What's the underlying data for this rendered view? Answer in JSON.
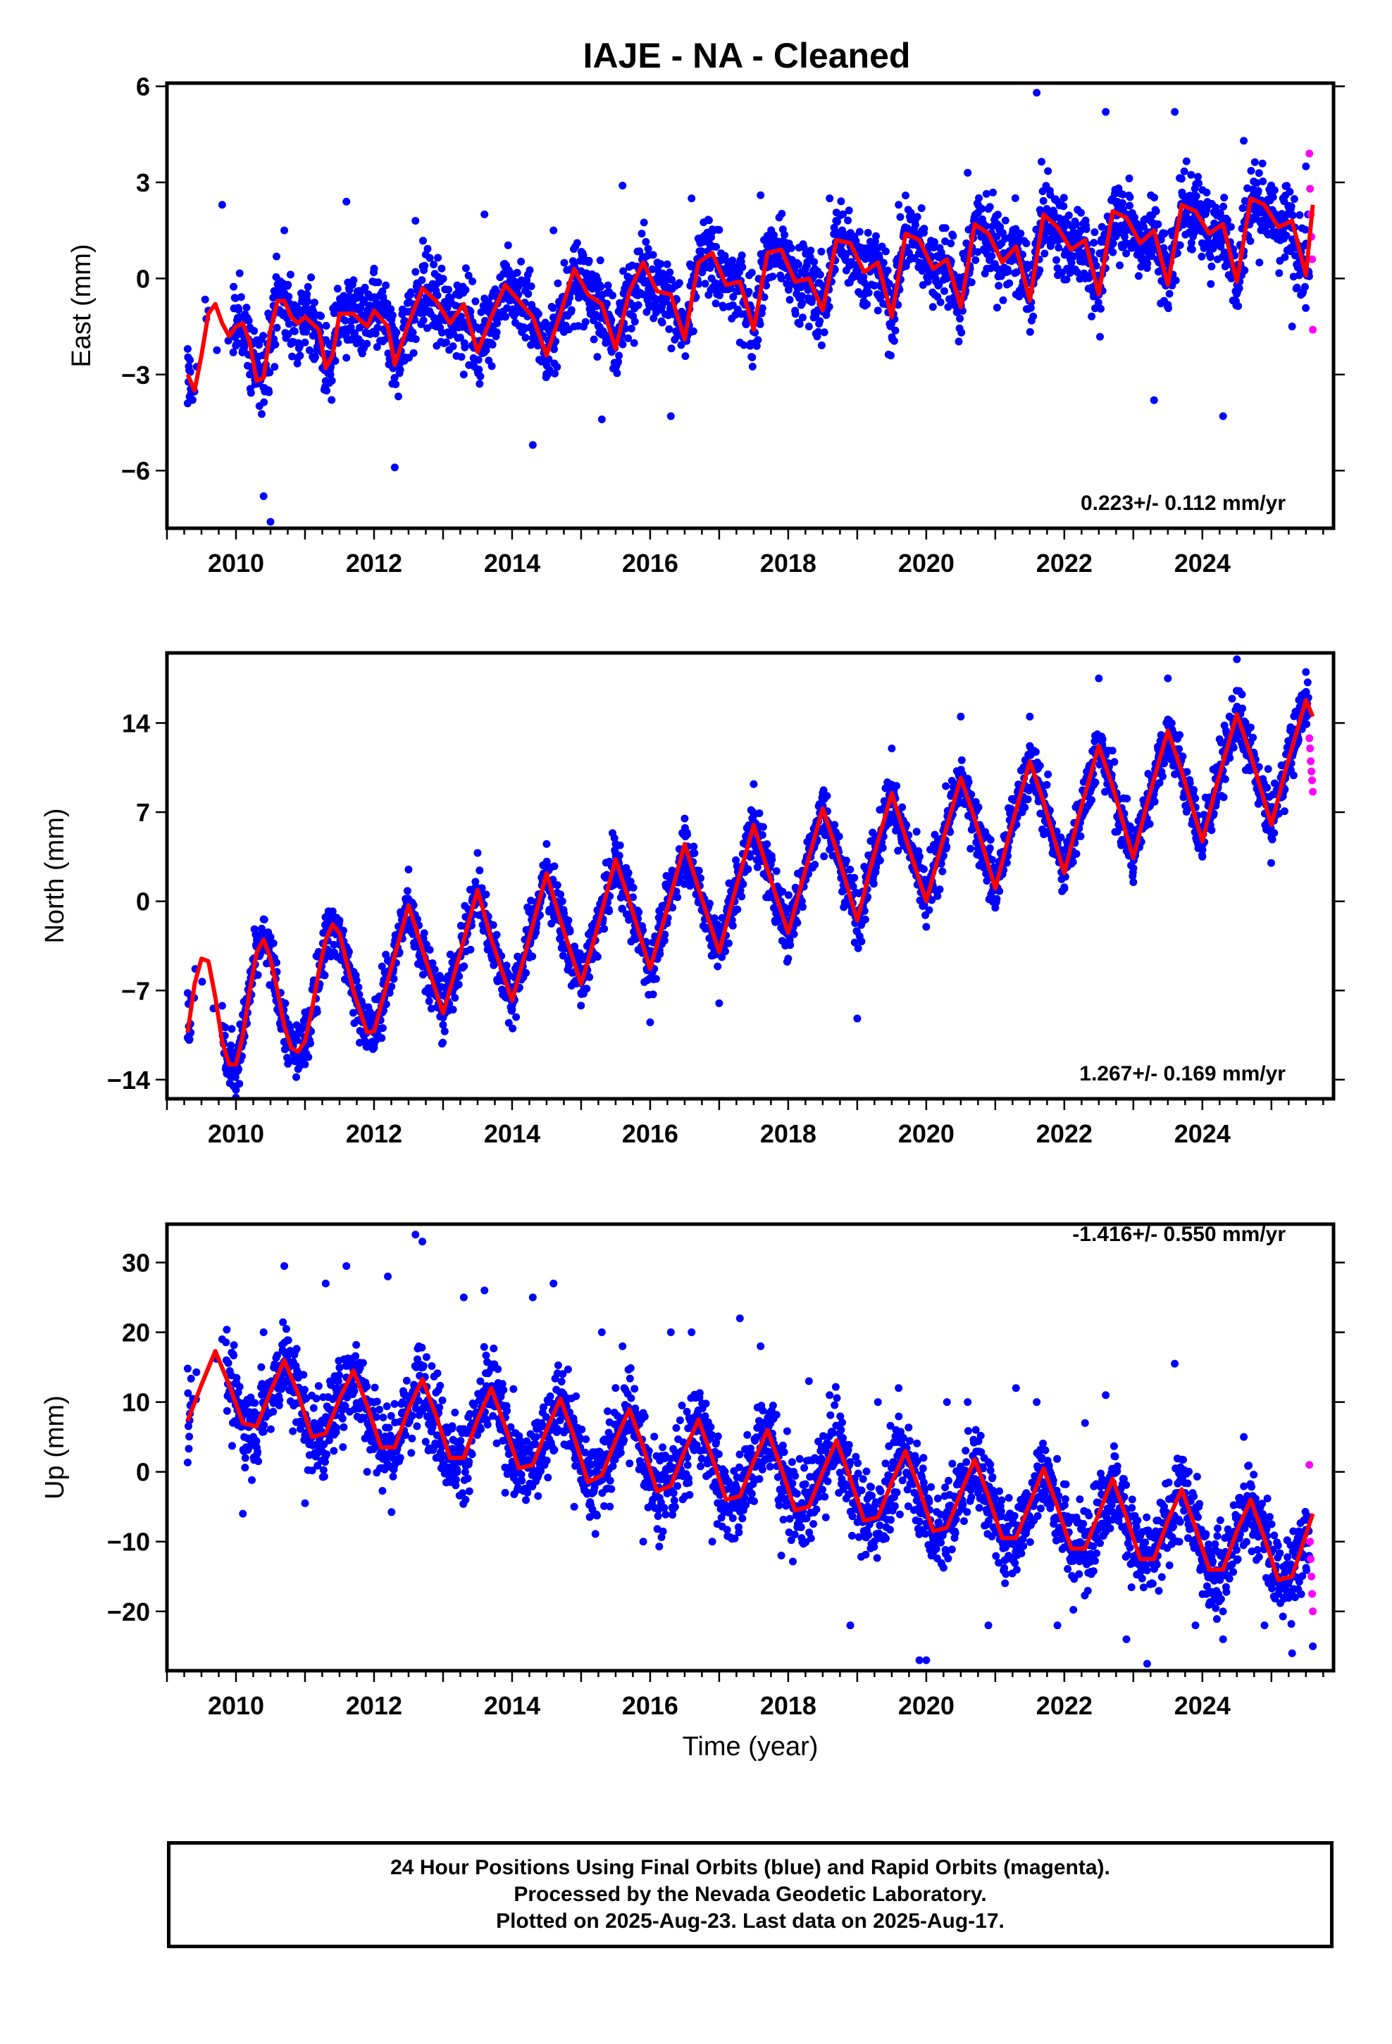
{
  "title": "IAJE  - NA - Cleaned",
  "footer": {
    "line1": "24 Hour Positions Using Final Orbits (blue) and Rapid Orbits (magenta).",
    "line2": "Processed by the Nevada Geodetic Laboratory.",
    "line3": "Plotted on 2025-Aug-23. Last data on 2025-Aug-17."
  },
  "chart_data": [
    {
      "type": "scatter",
      "ylabel": "East (mm)",
      "xlabel": "",
      "rate_label": "0.223+/- 0.112 mm/yr",
      "xlim": [
        2009.0,
        2025.9
      ],
      "ylim": [
        -7.8,
        6.1
      ],
      "xticks": [
        2010,
        2012,
        2014,
        2016,
        2018,
        2020,
        2022,
        2024
      ],
      "yticks": [
        -6,
        -3,
        0,
        3,
        6
      ],
      "yticklabels": [
        "−6",
        "−3",
        "0",
        "3",
        "6"
      ],
      "grid": false,
      "colors": {
        "final": "#0000ff",
        "rapid": "#ff00ff",
        "model": "#ff0000"
      },
      "series": [
        {
          "name": "Final Orbits",
          "kind": "points",
          "x": [
            2009.3,
            2009.6,
            2009.8,
            2010.0,
            2010.2,
            2010.4,
            2010.5,
            2010.7,
            2011.0,
            2011.3,
            2011.6,
            2011.9,
            2012.3,
            2012.6,
            2012.9,
            2013.3,
            2013.6,
            2013.9,
            2014.3,
            2014.6,
            2014.9,
            2015.3,
            2015.6,
            2015.9,
            2016.3,
            2016.6,
            2016.9,
            2017.3,
            2017.6,
            2017.9,
            2018.3,
            2018.6,
            2018.9,
            2019.3,
            2019.6,
            2019.9,
            2020.3,
            2020.6,
            2020.9,
            2021.3,
            2021.6,
            2021.9,
            2022.3,
            2022.6,
            2022.9,
            2023.3,
            2023.6,
            2023.9,
            2024.3,
            2024.6,
            2024.9,
            2025.3,
            2025.5
          ],
          "y": [
            -3.9,
            -1.0,
            2.3,
            -1.5,
            -3.0,
            -6.8,
            -7.6,
            1.5,
            -2.0,
            -3.2,
            2.4,
            -1.0,
            -5.9,
            1.8,
            -1.5,
            -3.0,
            2.0,
            -0.5,
            -5.2,
            1.5,
            -1.5,
            -4.4,
            2.9,
            -0.5,
            -4.3,
            2.5,
            0.5,
            -2.0,
            2.6,
            0.0,
            -1.5,
            2.5,
            1.0,
            -1.0,
            2.3,
            0.5,
            0.0,
            3.3,
            1.0,
            -0.5,
            5.8,
            1.5,
            0.0,
            5.2,
            1.5,
            -3.8,
            5.2,
            2.0,
            -4.3,
            4.3,
            1.5,
            -1.5,
            3.5
          ]
        },
        {
          "name": "Rapid Orbits",
          "kind": "points",
          "x": [
            2025.55,
            2025.56,
            2025.57,
            2025.58,
            2025.59,
            2025.6
          ],
          "y": [
            3.9,
            2.8,
            2.0,
            1.3,
            0.6,
            -1.6
          ]
        },
        {
          "name": "Model",
          "kind": "line",
          "x": [
            2009.3,
            2009.4,
            2009.5,
            2009.6,
            2009.7,
            2009.8,
            2009.9,
            2010.0,
            2010.1,
            2010.2,
            2010.3,
            2010.4,
            2010.5,
            2010.6,
            2010.7,
            2010.8,
            2010.9,
            2011.0,
            2011.2,
            2011.3,
            2011.4,
            2011.5,
            2011.7,
            2011.9,
            2012.0,
            2012.2,
            2012.3,
            2012.5,
            2012.7,
            2012.9,
            2013.1,
            2013.3,
            2013.5,
            2013.7,
            2013.9,
            2014.1,
            2014.3,
            2014.5,
            2014.7,
            2014.9,
            2015.1,
            2015.3,
            2015.5,
            2015.7,
            2015.9,
            2016.1,
            2016.3,
            2016.5,
            2016.7,
            2016.9,
            2017.1,
            2017.3,
            2017.5,
            2017.7,
            2017.9,
            2018.1,
            2018.3,
            2018.5,
            2018.7,
            2018.9,
            2019.1,
            2019.3,
            2019.5,
            2019.7,
            2019.9,
            2020.1,
            2020.3,
            2020.5,
            2020.7,
            2020.9,
            2021.1,
            2021.3,
            2021.5,
            2021.7,
            2021.9,
            2022.1,
            2022.3,
            2022.5,
            2022.7,
            2022.9,
            2023.1,
            2023.3,
            2023.5,
            2023.7,
            2023.9,
            2024.1,
            2024.3,
            2024.5,
            2024.7,
            2024.9,
            2025.1,
            2025.3,
            2025.5,
            2025.6
          ],
          "y": [
            -3.0,
            -3.5,
            -2.4,
            -1.1,
            -0.8,
            -1.4,
            -1.8,
            -1.5,
            -1.4,
            -2.0,
            -3.2,
            -3.1,
            -1.6,
            -0.7,
            -0.7,
            -1.2,
            -1.4,
            -1.2,
            -1.6,
            -2.8,
            -2.4,
            -1.1,
            -1.1,
            -1.5,
            -1.0,
            -1.5,
            -2.7,
            -1.4,
            -0.3,
            -0.7,
            -1.4,
            -0.8,
            -2.3,
            -1.2,
            -0.2,
            -0.7,
            -1.2,
            -2.4,
            -1.1,
            0.3,
            -0.5,
            -0.8,
            -2.2,
            -0.4,
            0.5,
            -0.4,
            -0.5,
            -1.9,
            0.5,
            0.8,
            -0.2,
            -0.1,
            -1.6,
            0.8,
            0.9,
            -0.1,
            0.0,
            -1.0,
            1.2,
            1.1,
            0.2,
            0.5,
            -1.2,
            1.4,
            1.2,
            0.3,
            0.6,
            -0.9,
            1.7,
            1.4,
            0.5,
            1.0,
            -0.7,
            2.0,
            1.6,
            0.9,
            1.2,
            -0.5,
            2.1,
            1.9,
            1.1,
            1.5,
            -0.2,
            2.3,
            2.1,
            1.4,
            1.7,
            -0.1,
            2.5,
            2.3,
            1.6,
            1.8,
            0.1,
            2.3
          ]
        }
      ]
    },
    {
      "type": "scatter",
      "ylabel": "North (mm)",
      "xlabel": "",
      "rate_label": "1.267+/- 0.169 mm/yr",
      "xlim": [
        2009.0,
        2025.9
      ],
      "ylim": [
        -15.5,
        19.5
      ],
      "xticks": [
        2010,
        2012,
        2014,
        2016,
        2018,
        2020,
        2022,
        2024
      ],
      "yticks": [
        -14,
        -7,
        0,
        7,
        14
      ],
      "yticklabels": [
        "−14",
        "−7",
        "0",
        "7",
        "14"
      ],
      "grid": false,
      "colors": {
        "final": "#0000ff",
        "rapid": "#ff00ff",
        "model": "#ff0000"
      },
      "series": [
        {
          "name": "Final Orbits",
          "kind": "points",
          "x": [
            2009.3,
            2009.8,
            2010.0,
            2010.5,
            2011.0,
            2011.5,
            2012.0,
            2012.5,
            2013.0,
            2013.5,
            2014.0,
            2014.5,
            2015.0,
            2015.5,
            2016.0,
            2016.5,
            2017.0,
            2017.5,
            2018.0,
            2018.5,
            2019.0,
            2019.5,
            2020.0,
            2020.5,
            2021.0,
            2021.5,
            2022.0,
            2022.5,
            2023.0,
            2023.5,
            2024.0,
            2024.5,
            2025.0,
            2025.5
          ],
          "y": [
            -7.2,
            -8.2,
            -14.8,
            -2.8,
            -12.8,
            -1.5,
            -11.5,
            2.5,
            -9.7,
            3.8,
            -8.5,
            4.5,
            -7.2,
            4.5,
            -9.5,
            6.5,
            -8.0,
            9.2,
            -4.5,
            8.5,
            -9.2,
            12.0,
            -2.0,
            14.5,
            -0.5,
            14.5,
            1.0,
            17.5,
            1.5,
            17.5,
            3.5,
            19.0,
            5.0,
            18.0
          ]
        },
        {
          "name": "Rapid Orbits",
          "kind": "points",
          "x": [
            2025.55,
            2025.56,
            2025.57,
            2025.58,
            2025.59,
            2025.6
          ],
          "y": [
            12.8,
            12.0,
            11.0,
            10.2,
            9.5,
            8.6
          ]
        },
        {
          "name": "Model",
          "kind": "line",
          "x": [
            2009.3,
            2009.4,
            2009.5,
            2009.6,
            2009.7,
            2009.8,
            2009.9,
            2010.0,
            2010.1,
            2010.2,
            2010.3,
            2010.4,
            2010.5,
            2010.6,
            2010.7,
            2010.8,
            2010.9,
            2011.0,
            2011.1,
            2011.2,
            2011.3,
            2011.4,
            2011.5,
            2011.7,
            2011.9,
            2012.0,
            2012.2,
            2012.5,
            2012.7,
            2013.0,
            2013.2,
            2013.5,
            2013.7,
            2014.0,
            2014.2,
            2014.5,
            2014.7,
            2015.0,
            2015.2,
            2015.5,
            2015.7,
            2016.0,
            2016.2,
            2016.5,
            2016.7,
            2017.0,
            2017.2,
            2017.5,
            2017.7,
            2018.0,
            2018.2,
            2018.5,
            2018.7,
            2019.0,
            2019.2,
            2019.5,
            2019.7,
            2020.0,
            2020.2,
            2020.5,
            2020.7,
            2021.0,
            2021.2,
            2021.5,
            2021.7,
            2022.0,
            2022.2,
            2022.5,
            2022.7,
            2023.0,
            2023.2,
            2023.5,
            2023.7,
            2024.0,
            2024.2,
            2024.5,
            2024.7,
            2025.0,
            2025.2,
            2025.5,
            2025.6
          ],
          "y": [
            -10.3,
            -6.5,
            -4.5,
            -4.7,
            -7.5,
            -11.0,
            -12.8,
            -12.8,
            -10.5,
            -7.0,
            -4.0,
            -3.0,
            -4.5,
            -7.0,
            -9.8,
            -11.5,
            -11.8,
            -11.0,
            -8.5,
            -5.5,
            -3.0,
            -1.8,
            -2.5,
            -7.0,
            -10.3,
            -10.2,
            -6.2,
            -0.3,
            -3.8,
            -8.8,
            -5.0,
            0.9,
            -3.0,
            -7.8,
            -3.9,
            2.2,
            -1.5,
            -6.5,
            -2.8,
            3.3,
            0.0,
            -5.3,
            -1.5,
            4.5,
            1.0,
            -4.0,
            0.2,
            6.0,
            2.5,
            -2.5,
            1.5,
            7.3,
            4.0,
            -1.5,
            2.8,
            8.5,
            5.0,
            0.0,
            4.0,
            9.7,
            6.5,
            1.0,
            5.2,
            11.0,
            7.8,
            2.2,
            6.5,
            12.2,
            9.0,
            3.4,
            7.7,
            13.4,
            10.2,
            4.7,
            9.0,
            14.7,
            11.5,
            6.0,
            10.2,
            15.8,
            14.5
          ]
        }
      ]
    },
    {
      "type": "scatter",
      "ylabel": "Up (mm)",
      "xlabel": "Time (year)",
      "rate_label": "-1.416+/- 0.550 mm/yr",
      "xlim": [
        2009.0,
        2025.9
      ],
      "ylim": [
        -28.5,
        35.5
      ],
      "xticks": [
        2010,
        2012,
        2014,
        2016,
        2018,
        2020,
        2022,
        2024
      ],
      "yticks": [
        -20,
        -10,
        0,
        10,
        20,
        30
      ],
      "yticklabels": [
        "−20",
        "−10",
        "0",
        "10",
        "20",
        "30"
      ],
      "grid": false,
      "colors": {
        "final": "#0000ff",
        "rapid": "#ff00ff",
        "model": "#ff0000"
      },
      "series": [
        {
          "name": "Final Orbits",
          "kind": "points",
          "x": [
            2009.3,
            2009.8,
            2010.1,
            2010.4,
            2010.7,
            2011.0,
            2011.3,
            2011.6,
            2011.9,
            2012.2,
            2012.6,
            2012.7,
            2012.9,
            2013.3,
            2013.6,
            2013.9,
            2014.3,
            2014.6,
            2014.9,
            2015.3,
            2015.6,
            2015.9,
            2016.3,
            2016.6,
            2016.9,
            2017.3,
            2017.6,
            2017.9,
            2018.3,
            2018.6,
            2018.9,
            2019.3,
            2019.6,
            2019.9,
            2020.0,
            2020.3,
            2020.6,
            2020.9,
            2021.3,
            2021.6,
            2021.9,
            2022.3,
            2022.6,
            2022.9,
            2023.2,
            2023.6,
            2023.9,
            2024.3,
            2024.6,
            2024.9,
            2025.3,
            2025.6
          ],
          "y": [
            14.8,
            19.0,
            -6.0,
            20.0,
            29.5,
            -4.5,
            27.0,
            29.5,
            0.0,
            28.0,
            34.0,
            33.0,
            2.0,
            25.0,
            26.0,
            -3.0,
            25.0,
            27.0,
            -5.0,
            20.0,
            18.0,
            -10.0,
            20.0,
            20.0,
            -10.0,
            22.0,
            18.0,
            -12.0,
            13.0,
            11.0,
            -22.0,
            10.0,
            12.0,
            -27.0,
            -27.0,
            10.0,
            10.0,
            -22.0,
            12.0,
            10.0,
            -22.0,
            7.0,
            11.0,
            -24.0,
            -27.5,
            15.5,
            -22.0,
            -24.0,
            5.0,
            -22.0,
            -26.0,
            -25.0
          ]
        },
        {
          "name": "Rapid Orbits",
          "kind": "points",
          "x": [
            2025.55,
            2025.56,
            2025.57,
            2025.58,
            2025.59,
            2025.6
          ],
          "y": [
            1.0,
            -10.0,
            -12.5,
            -15.0,
            -17.5,
            -20.0
          ]
        },
        {
          "name": "Model",
          "kind": "line",
          "x": [
            2009.3,
            2009.5,
            2009.7,
            2009.9,
            2010.1,
            2010.3,
            2010.5,
            2010.7,
            2010.9,
            2011.1,
            2011.3,
            2011.5,
            2011.7,
            2011.9,
            2012.1,
            2012.3,
            2012.5,
            2012.7,
            2012.9,
            2013.1,
            2013.3,
            2013.5,
            2013.7,
            2013.9,
            2014.1,
            2014.3,
            2014.5,
            2014.7,
            2014.9,
            2015.1,
            2015.3,
            2015.5,
            2015.7,
            2015.9,
            2016.1,
            2016.3,
            2016.5,
            2016.7,
            2016.9,
            2017.1,
            2017.3,
            2017.5,
            2017.7,
            2017.9,
            2018.1,
            2018.3,
            2018.5,
            2018.7,
            2018.9,
            2019.1,
            2019.3,
            2019.5,
            2019.7,
            2019.9,
            2020.1,
            2020.3,
            2020.5,
            2020.7,
            2020.9,
            2021.1,
            2021.3,
            2021.5,
            2021.7,
            2021.9,
            2022.1,
            2022.3,
            2022.5,
            2022.7,
            2022.9,
            2023.1,
            2023.3,
            2023.5,
            2023.7,
            2023.9,
            2024.1,
            2024.3,
            2024.5,
            2024.7,
            2024.9,
            2025.1,
            2025.3,
            2025.6
          ],
          "y": [
            7.3,
            12.5,
            17.3,
            12.5,
            7.0,
            6.5,
            11.5,
            16.0,
            11.2,
            5.0,
            5.5,
            10.5,
            14.5,
            9.5,
            3.5,
            3.5,
            9.0,
            13.3,
            8.0,
            2.0,
            2.0,
            7.5,
            12.0,
            6.5,
            0.5,
            1.0,
            6.0,
            10.5,
            5.0,
            -1.5,
            -0.5,
            4.5,
            9.0,
            3.5,
            -2.8,
            -2.0,
            3.0,
            7.5,
            2.0,
            -4.0,
            -3.5,
            1.5,
            6.0,
            0.5,
            -5.5,
            -5.0,
            0.0,
            4.5,
            -1.0,
            -7.0,
            -6.5,
            -1.5,
            3.0,
            -2.5,
            -8.5,
            -8.0,
            -3.0,
            1.8,
            -3.5,
            -9.5,
            -9.5,
            -4.5,
            0.5,
            -5.0,
            -11.0,
            -11.0,
            -6.0,
            -1.0,
            -6.5,
            -12.5,
            -12.5,
            -7.0,
            -2.5,
            -8.0,
            -14.0,
            -14.0,
            -8.5,
            -4.0,
            -9.5,
            -15.5,
            -15.0,
            -6.0
          ]
        }
      ]
    }
  ]
}
